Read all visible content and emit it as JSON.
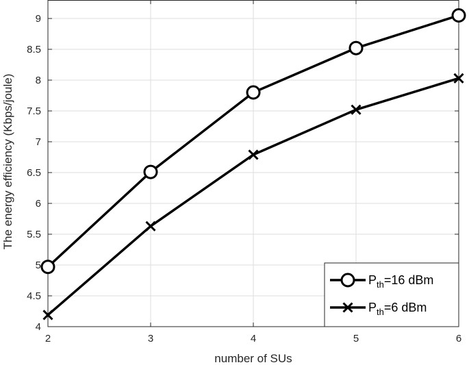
{
  "chart_data": {
    "type": "line",
    "xlabel": "number of SUs",
    "ylabel": "The energy efficiency (Kbps/joule)",
    "x": [
      2,
      3,
      4,
      5,
      6
    ],
    "xlim": [
      2,
      6
    ],
    "ylim": [
      4,
      9.3
    ],
    "xticks": [
      "2",
      "3",
      "4",
      "5",
      "6"
    ],
    "yticks": [
      "4",
      "4.5",
      "5",
      "5.5",
      "6",
      "6.5",
      "7",
      "7.5",
      "8",
      "8.5",
      "9"
    ],
    "grid": true,
    "legend_position": "bottom-right",
    "series": [
      {
        "name_main": "P",
        "name_sub": "th",
        "name_rest": "=16 dBm",
        "marker": "circle",
        "color": "#000000",
        "values": [
          4.97,
          6.51,
          7.8,
          8.52,
          9.05
        ]
      },
      {
        "name_main": "P",
        "name_sub": "th",
        "name_rest": "=6 dBm",
        "marker": "x",
        "color": "#000000",
        "values": [
          4.19,
          5.63,
          6.79,
          7.52,
          8.03
        ]
      }
    ]
  }
}
